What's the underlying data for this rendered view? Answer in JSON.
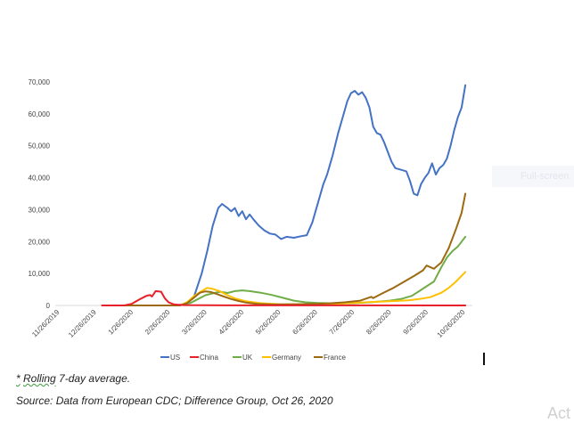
{
  "chart_data": {
    "type": "line",
    "title": "",
    "xlabel": "",
    "ylabel": "",
    "ylim": [
      0,
      70000
    ],
    "yticks": [
      0,
      10000,
      20000,
      30000,
      40000,
      50000,
      60000,
      70000
    ],
    "ytick_labels": [
      "0",
      "10,000",
      "20,000",
      "30,000",
      "40,000",
      "50,000",
      "60,000",
      "70,000"
    ],
    "xtick_labels": [
      "11/26/2019",
      "12/26/2019",
      "1/26/2020",
      "2/26/2020",
      "3/26/2020",
      "4/26/2020",
      "5/26/2020",
      "6/26/2020",
      "7/26/2020",
      "8/26/2020",
      "9/26/2020",
      "10/26/2020"
    ],
    "x_unit": "months since 11/26/2019",
    "xlim": [
      0,
      11
    ],
    "grid": false,
    "legend_position": "bottom",
    "series": [
      {
        "name": "US",
        "color": "#4472c4",
        "points": [
          [
            1.2,
            0
          ],
          [
            3.2,
            0
          ],
          [
            3.5,
            500
          ],
          [
            3.7,
            3000
          ],
          [
            3.9,
            10000
          ],
          [
            4.05,
            17000
          ],
          [
            4.2,
            25000
          ],
          [
            4.35,
            30500
          ],
          [
            4.45,
            31800
          ],
          [
            4.6,
            30500
          ],
          [
            4.7,
            29500
          ],
          [
            4.8,
            30500
          ],
          [
            4.9,
            28000
          ],
          [
            5.0,
            29500
          ],
          [
            5.1,
            27000
          ],
          [
            5.2,
            28500
          ],
          [
            5.3,
            27000
          ],
          [
            5.45,
            25000
          ],
          [
            5.6,
            23500
          ],
          [
            5.75,
            22500
          ],
          [
            5.9,
            22200
          ],
          [
            6.05,
            20800
          ],
          [
            6.2,
            21500
          ],
          [
            6.4,
            21200
          ],
          [
            6.6,
            21700
          ],
          [
            6.75,
            22000
          ],
          [
            6.9,
            26000
          ],
          [
            7.05,
            32000
          ],
          [
            7.2,
            38000
          ],
          [
            7.3,
            41000
          ],
          [
            7.45,
            47000
          ],
          [
            7.6,
            54000
          ],
          [
            7.75,
            60000
          ],
          [
            7.85,
            64000
          ],
          [
            7.95,
            66500
          ],
          [
            8.05,
            67200
          ],
          [
            8.15,
            66000
          ],
          [
            8.25,
            66800
          ],
          [
            8.35,
            65000
          ],
          [
            8.45,
            62000
          ],
          [
            8.55,
            56000
          ],
          [
            8.65,
            54000
          ],
          [
            8.75,
            53500
          ],
          [
            8.85,
            51000
          ],
          [
            8.95,
            48000
          ],
          [
            9.05,
            45000
          ],
          [
            9.15,
            43000
          ],
          [
            9.3,
            42500
          ],
          [
            9.45,
            42000
          ],
          [
            9.55,
            39000
          ],
          [
            9.65,
            35000
          ],
          [
            9.75,
            34500
          ],
          [
            9.85,
            38000
          ],
          [
            9.95,
            40000
          ],
          [
            10.05,
            41500
          ],
          [
            10.15,
            44500
          ],
          [
            10.25,
            41000
          ],
          [
            10.35,
            43000
          ],
          [
            10.45,
            44000
          ],
          [
            10.55,
            46000
          ],
          [
            10.65,
            50000
          ],
          [
            10.75,
            55000
          ],
          [
            10.85,
            59000
          ],
          [
            10.95,
            62000
          ],
          [
            11.05,
            69000
          ]
        ]
      },
      {
        "name": "China",
        "color": "#e8202a",
        "points": [
          [
            1.2,
            0
          ],
          [
            1.8,
            0
          ],
          [
            2.0,
            500
          ],
          [
            2.2,
            1800
          ],
          [
            2.4,
            3000
          ],
          [
            2.5,
            3300
          ],
          [
            2.55,
            2800
          ],
          [
            2.65,
            4500
          ],
          [
            2.8,
            4300
          ],
          [
            2.9,
            2200
          ],
          [
            3.0,
            1000
          ],
          [
            3.15,
            300
          ],
          [
            3.4,
            100
          ],
          [
            4.0,
            50
          ],
          [
            11.05,
            0
          ]
        ]
      },
      {
        "name": "UK",
        "color": "#70ad47",
        "points": [
          [
            1.2,
            0
          ],
          [
            3.3,
            0
          ],
          [
            3.6,
            800
          ],
          [
            3.8,
            2000
          ],
          [
            4.0,
            3200
          ],
          [
            4.2,
            3800
          ],
          [
            4.4,
            4300
          ],
          [
            4.6,
            3900
          ],
          [
            4.8,
            4500
          ],
          [
            5.0,
            4700
          ],
          [
            5.2,
            4500
          ],
          [
            5.5,
            4000
          ],
          [
            5.8,
            3300
          ],
          [
            6.1,
            2400
          ],
          [
            6.4,
            1500
          ],
          [
            6.7,
            1000
          ],
          [
            7.0,
            800
          ],
          [
            7.5,
            600
          ],
          [
            8.0,
            700
          ],
          [
            8.5,
            1000
          ],
          [
            9.0,
            1500
          ],
          [
            9.3,
            2000
          ],
          [
            9.6,
            3000
          ],
          [
            9.8,
            4500
          ],
          [
            10.0,
            6000
          ],
          [
            10.2,
            7500
          ],
          [
            10.4,
            12000
          ],
          [
            10.55,
            15000
          ],
          [
            10.7,
            17000
          ],
          [
            10.85,
            18500
          ],
          [
            11.05,
            21500
          ]
        ]
      },
      {
        "name": "Germany",
        "color": "#ffc000",
        "points": [
          [
            1.2,
            0
          ],
          [
            3.3,
            0
          ],
          [
            3.5,
            1000
          ],
          [
            3.7,
            3000
          ],
          [
            3.9,
            4500
          ],
          [
            4.05,
            5500
          ],
          [
            4.2,
            5200
          ],
          [
            4.4,
            4400
          ],
          [
            4.6,
            3200
          ],
          [
            4.8,
            2200
          ],
          [
            5.1,
            1300
          ],
          [
            5.5,
            700
          ],
          [
            6.0,
            400
          ],
          [
            6.5,
            350
          ],
          [
            7.0,
            300
          ],
          [
            7.5,
            500
          ],
          [
            8.0,
            800
          ],
          [
            8.5,
            1100
          ],
          [
            9.0,
            1300
          ],
          [
            9.5,
            1600
          ],
          [
            9.8,
            2000
          ],
          [
            10.1,
            2600
          ],
          [
            10.4,
            4000
          ],
          [
            10.6,
            5500
          ],
          [
            10.8,
            7500
          ],
          [
            11.05,
            10500
          ]
        ]
      },
      {
        "name": "France",
        "color": "#9c6a12",
        "points": [
          [
            1.2,
            0
          ],
          [
            3.3,
            0
          ],
          [
            3.5,
            700
          ],
          [
            3.7,
            2500
          ],
          [
            3.85,
            4000
          ],
          [
            4.0,
            4400
          ],
          [
            4.15,
            4200
          ],
          [
            4.3,
            3600
          ],
          [
            4.5,
            2800
          ],
          [
            4.7,
            2000
          ],
          [
            4.9,
            1400
          ],
          [
            5.1,
            900
          ],
          [
            5.4,
            500
          ],
          [
            5.8,
            300
          ],
          [
            6.2,
            350
          ],
          [
            6.6,
            400
          ],
          [
            7.0,
            500
          ],
          [
            7.4,
            700
          ],
          [
            7.8,
            1000
          ],
          [
            8.2,
            1500
          ],
          [
            8.5,
            2700
          ],
          [
            8.55,
            2300
          ],
          [
            8.8,
            3800
          ],
          [
            9.1,
            5500
          ],
          [
            9.4,
            7500
          ],
          [
            9.7,
            9500
          ],
          [
            9.9,
            11000
          ],
          [
            10.0,
            12500
          ],
          [
            10.2,
            11500
          ],
          [
            10.4,
            13500
          ],
          [
            10.6,
            18000
          ],
          [
            10.8,
            24000
          ],
          [
            10.95,
            29000
          ],
          [
            11.05,
            35000
          ]
        ]
      }
    ]
  },
  "notes": {
    "asterisk": "*",
    "rolling_word": "Rolling",
    "rolling_rest": " 7-day average.",
    "source": "Source: Data from European CDC; Difference Group, Oct 26, 2020"
  },
  "overlay": {
    "fullscreen_label": "Full-screen",
    "watermark": "Act"
  }
}
